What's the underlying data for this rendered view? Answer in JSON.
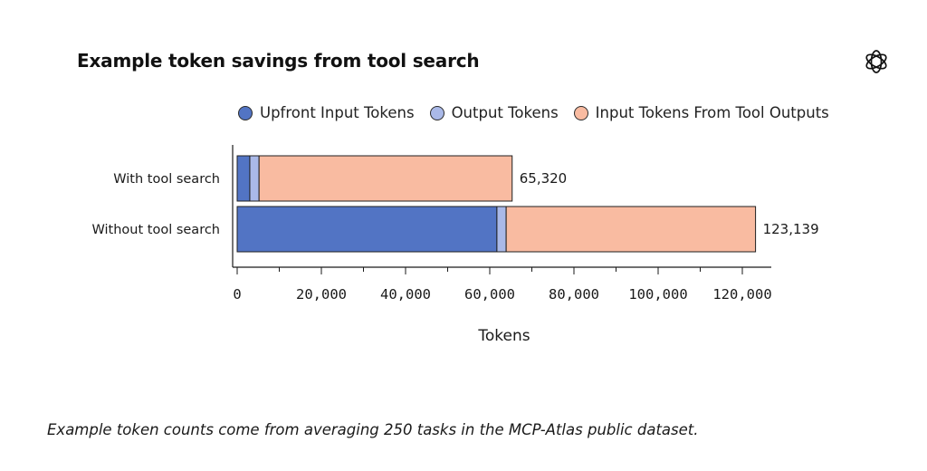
{
  "chart_data": {
    "type": "bar",
    "orientation": "horizontal",
    "stacked": true,
    "title": "Example token savings from tool search",
    "xlabel": "Tokens",
    "ylabel": "",
    "xlim": [
      0,
      130000
    ],
    "xticks": [
      0,
      20000,
      40000,
      60000,
      80000,
      100000,
      120000
    ],
    "xtick_labels": [
      "0",
      "20,000",
      "40,000",
      "60,000",
      "80,000",
      "100,000",
      "120,000"
    ],
    "categories": [
      "With tool search",
      "Without tool search"
    ],
    "series": [
      {
        "name": "Upfront Input Tokens",
        "color": "#5274c4",
        "values": [
          3000,
          61700
        ]
      },
      {
        "name": "Output Tokens",
        "color": "#aab9e8",
        "values": [
          2200,
          2200
        ]
      },
      {
        "name": "Input Tokens From Tool Outputs",
        "color": "#f9bba1",
        "values": [
          60120,
          59239
        ]
      }
    ],
    "totals": [
      65320,
      123139
    ],
    "total_labels": [
      "65,320",
      "123,139"
    ],
    "legend_position": "top",
    "grid": false
  },
  "caption": "Example token counts come from averaging 250 tasks in the MCP-Atlas public dataset.",
  "logo_icon": "openai-logo-icon"
}
